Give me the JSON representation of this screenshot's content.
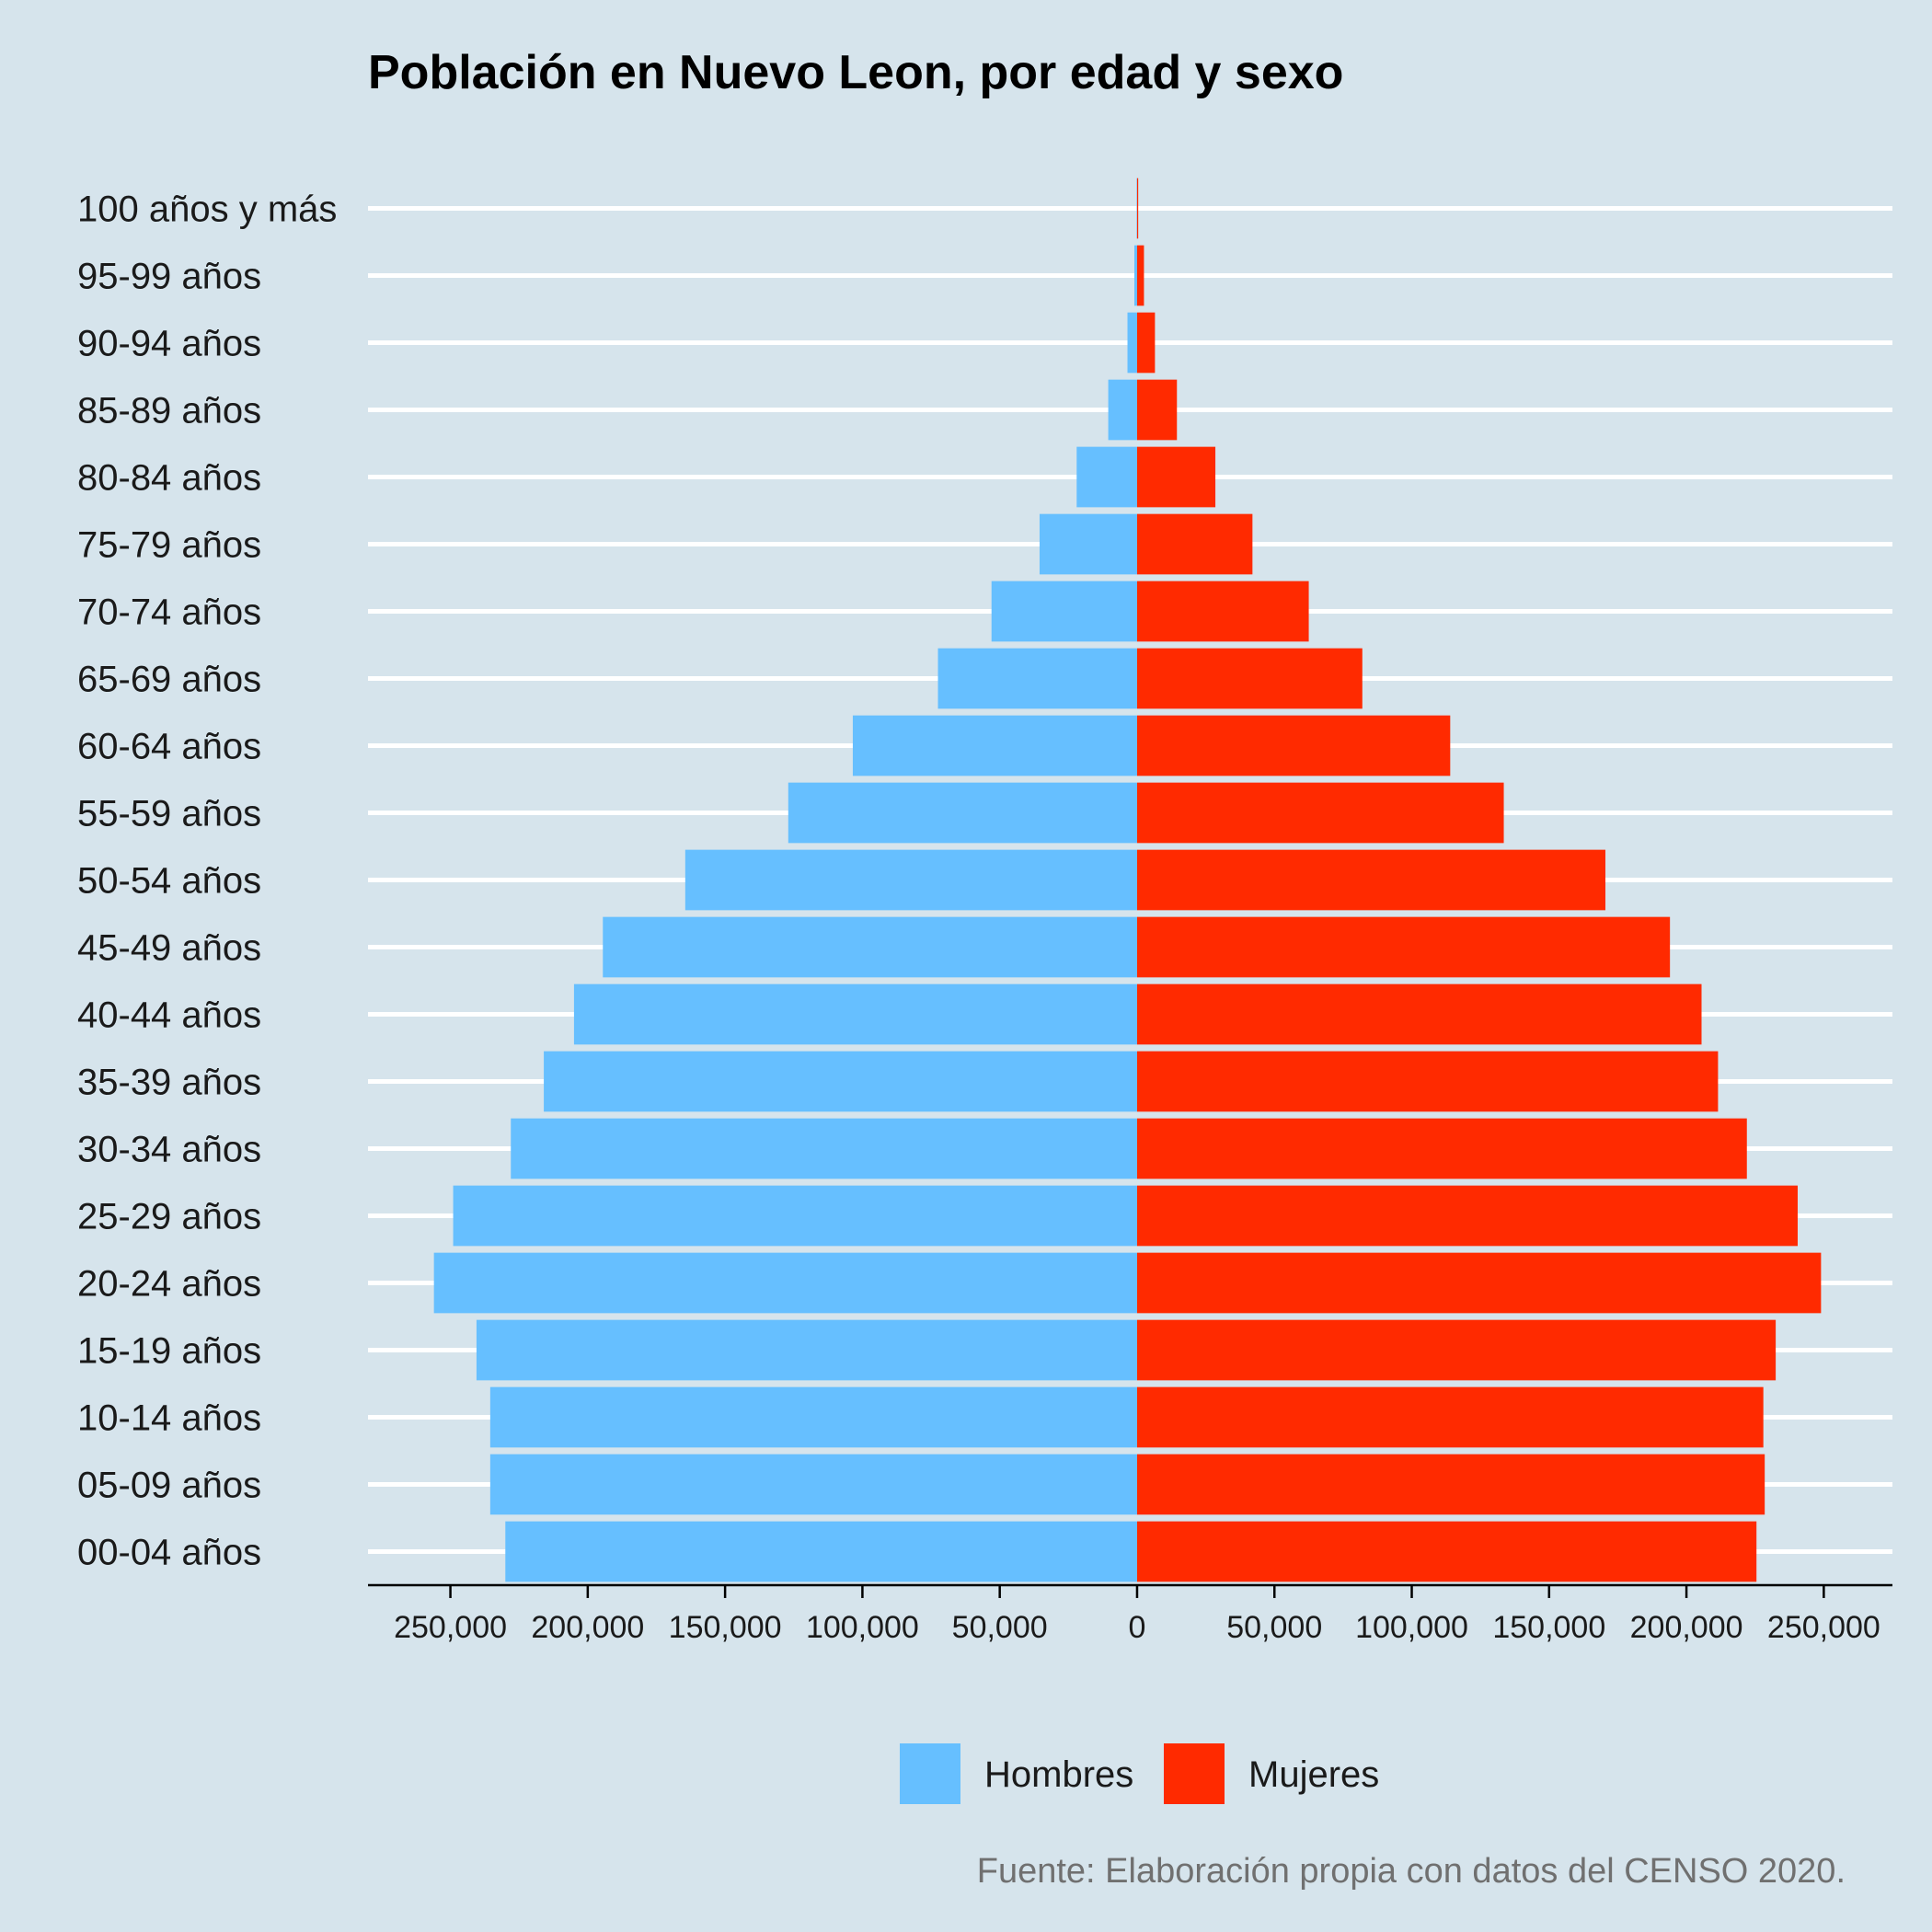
{
  "chart_data": {
    "type": "bar",
    "orientation": "horizontal",
    "layout": "population-pyramid",
    "title": "Población en Nuevo Leon, por edad y sexo",
    "caption": "Fuente: Elaboración propia con datos del CENSO 2020.",
    "categories": [
      "00-04 años",
      "05-09 años",
      "10-14 años",
      "15-19 años",
      "20-24 años",
      "25-29 años",
      "30-34 años",
      "35-39 años",
      "40-44 años",
      "45-49 años",
      "50-54 años",
      "55-59 años",
      "60-64 años",
      "65-69 años",
      "70-74 años",
      "75-79 años",
      "80-84 años",
      "85-89 años",
      "90-94 años",
      "95-99 años",
      "100 años y más"
    ],
    "series": [
      {
        "name": "Hombres",
        "color": "#66bfff",
        "side": "left",
        "values": [
          230000,
          235500,
          235500,
          240500,
          256000,
          249000,
          228000,
          216000,
          205000,
          194500,
          164500,
          127000,
          103500,
          72500,
          53000,
          35500,
          22000,
          10500,
          3500,
          1000,
          150
        ]
      },
      {
        "name": "Mujeres",
        "color": "#ff2a00",
        "side": "right",
        "values": [
          225500,
          228500,
          228000,
          232500,
          249000,
          240500,
          222000,
          211500,
          205500,
          194000,
          170500,
          133500,
          114000,
          82000,
          62500,
          42000,
          28500,
          14500,
          6500,
          2500,
          400
        ]
      }
    ],
    "xlim": [
      -280000,
      275000
    ],
    "xticks": [
      -250000,
      -200000,
      -150000,
      -100000,
      -50000,
      0,
      50000,
      100000,
      150000,
      200000,
      250000
    ],
    "xtick_labels": [
      "250,000",
      "200,000",
      "150,000",
      "100,000",
      "50,000",
      "0",
      "50,000",
      "100,000",
      "150,000",
      "200,000",
      "250,000"
    ],
    "xlabel": "",
    "ylabel": "",
    "grid": "horizontal",
    "legend_position": "bottom"
  },
  "colors": {
    "background": "#d6e4ec",
    "gridline": "#ffffff",
    "axis": "#000000"
  }
}
